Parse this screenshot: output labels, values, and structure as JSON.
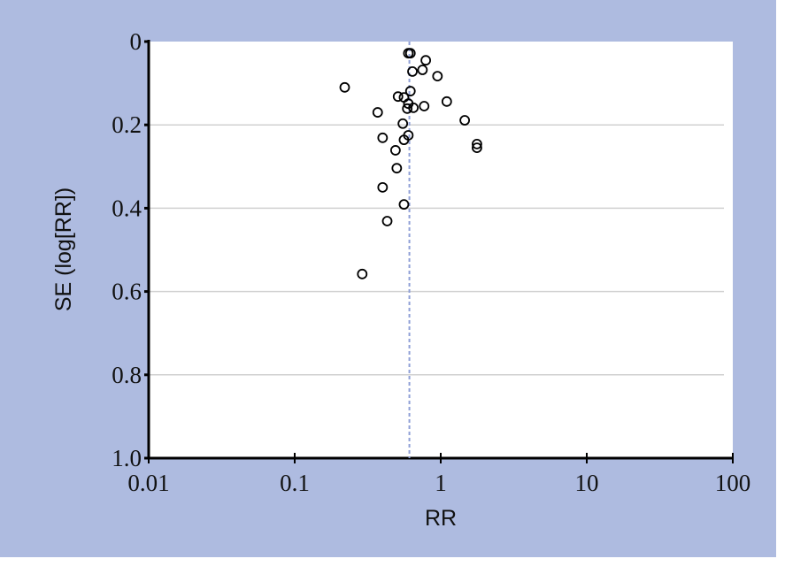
{
  "chart_data": {
    "type": "scatter",
    "x_label": "RR",
    "y_label": "SE (log[RR])",
    "log_x": true,
    "y_inverted": true,
    "grid": true,
    "reference_line": 0.61,
    "xlim": [
      0.01,
      100
    ],
    "xticks": [
      0.01,
      0.1,
      1,
      10,
      100
    ],
    "ylim": [
      0,
      1
    ],
    "yticks": [
      0,
      0.2,
      0.4,
      0.6,
      0.8,
      {
        "value": 1,
        "label": "1.0"
      }
    ],
    "series": [
      {
        "color": "#000000",
        "x": [
          0.22,
          0.6,
          0.62,
          0.79,
          0.75,
          0.64,
          0.95,
          0.51,
          0.56,
          0.62,
          0.6,
          0.59,
          0.65,
          0.77,
          1.1,
          0.37,
          1.46,
          0.55,
          1.77,
          1.77,
          0.4,
          0.6,
          0.56,
          0.49,
          0.5,
          0.4,
          0.56,
          0.43,
          0.29
        ],
        "values": [
          0.11,
          0.028,
          0.028,
          0.045,
          0.068,
          0.072,
          0.083,
          0.132,
          0.134,
          0.119,
          0.149,
          0.161,
          0.159,
          0.155,
          0.144,
          0.17,
          0.189,
          0.197,
          0.246,
          0.255,
          0.231,
          0.225,
          0.236,
          0.261,
          0.304,
          0.35,
          0.391,
          0.431,
          0.558
        ]
      }
    ]
  }
}
